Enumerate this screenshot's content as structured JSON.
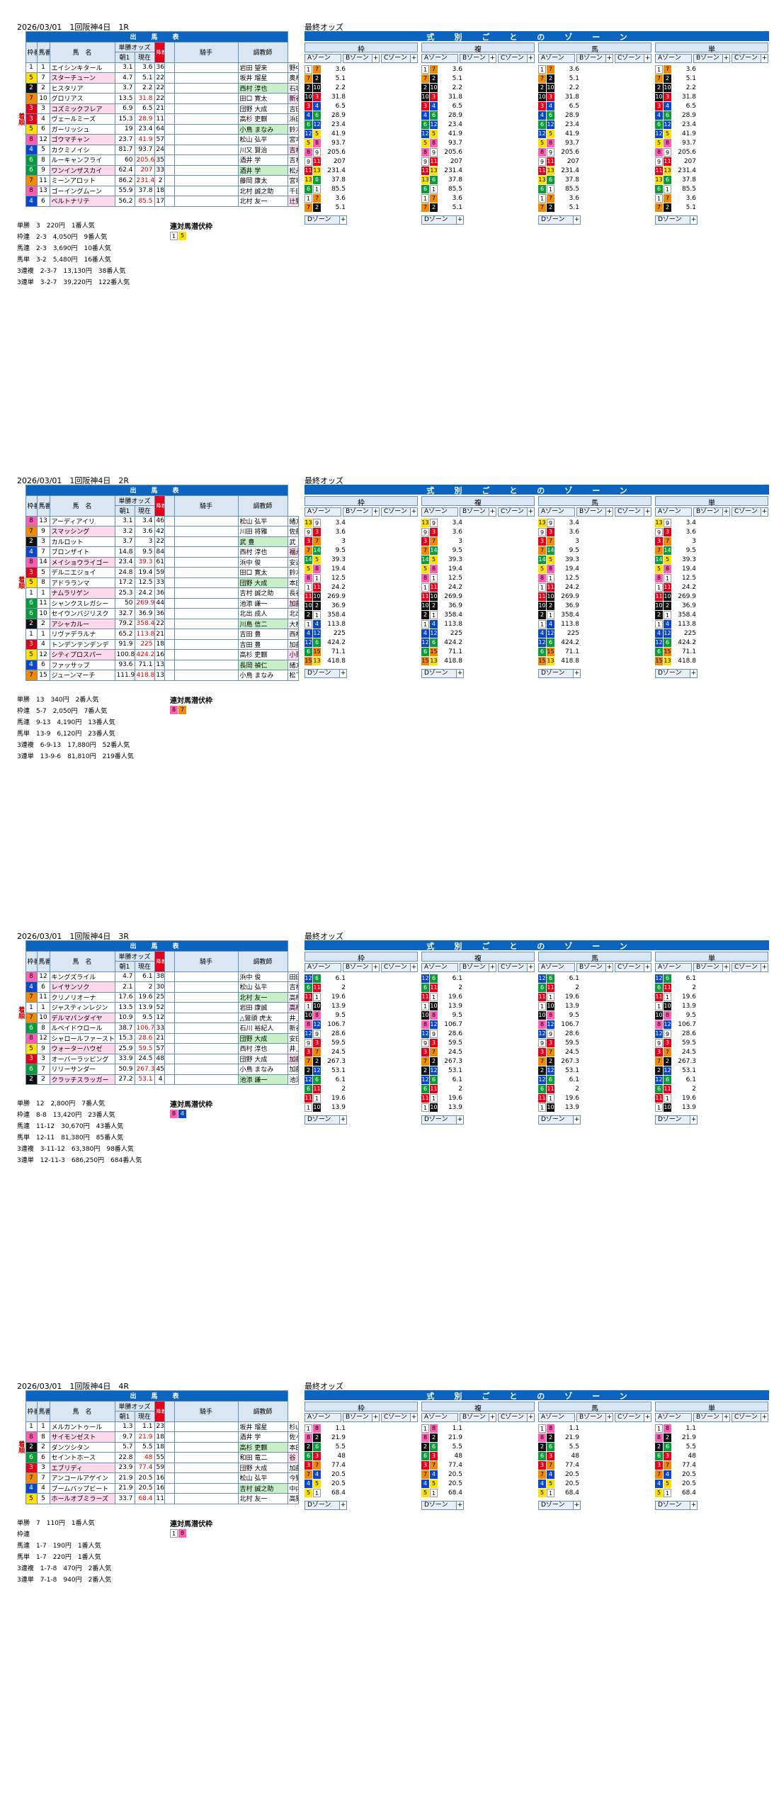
{
  "race_common": {
    "title_runners": "出　馬　表",
    "title_odds": "最終オッズ",
    "zone_header": "式別ごとのゾーン",
    "col_waku": "枠",
    "col_fuku": "複",
    "col_uma": "馬",
    "col_tan": "単",
    "th_wakuban": "枠番",
    "th_umaban": "馬番",
    "th_name": "馬　名",
    "th_odds": "単勝オッズ",
    "th_asa": "朝1",
    "th_now": "現在",
    "th_flag": "降着",
    "th_jockey": "騎手",
    "th_trainer": "調教師",
    "side_label": "着順",
    "zone_a": "Aゾーン",
    "zone_b": "Bゾーン",
    "zone_c": "Cゾーン",
    "zone_d": "Dゾーン",
    "nice": "連対馬潜伏枠"
  },
  "races": [
    {
      "header": "2026/03/01　1回阪神4日　1R",
      "runners": [
        {
          "w": "1",
          "u": "1",
          "name": "エイシンキタール",
          "a": "3.1",
          "n": "3.6",
          "p": "36",
          "j": "岩田 望来",
          "t": "野中 賢二"
        },
        {
          "w": "5",
          "u": "7",
          "name": "スターチューン",
          "a": "4.7",
          "n": "5.1",
          "p": "22",
          "j": "坂井 瑠星",
          "t": "奥村 豊"
        },
        {
          "w": "2",
          "u": "2",
          "name": "ヒスタリア",
          "a": "3.7",
          "n": "2.2",
          "p": "22",
          "j": "西村 淳也",
          "t": "石坂 公一"
        },
        {
          "w": "7",
          "u": "10",
          "name": "グロリアス",
          "a": "13.5",
          "n": "31.8",
          "p": "22",
          "j": "田口 寛太",
          "t": "新谷 功一"
        },
        {
          "w": "3",
          "u": "3",
          "name": "コズミックフレア",
          "a": "6.9",
          "n": "6.5",
          "p": "21",
          "j": "団野 大成",
          "t": "吉田 直弘"
        },
        {
          "w": "3",
          "u": "4",
          "name": "ヴェールミーズ",
          "a": "15.3",
          "n": "28.9",
          "p": "11",
          "j": "高杉 吏麒",
          "t": "浜田 多実雄"
        },
        {
          "w": "5",
          "u": "6",
          "name": "ガーリッシュ",
          "a": "19",
          "n": "23.4",
          "p": "64",
          "j": "小鳥 まなみ",
          "t": "鈴木 孝志"
        },
        {
          "w": "8",
          "u": "12",
          "name": "ゴウマチャン",
          "a": "23.7",
          "n": "41.9",
          "p": "57",
          "j": "松山 弘平",
          "t": "宮本 博"
        },
        {
          "w": "4",
          "u": "5",
          "name": "カクミノイシ",
          "a": "81.7",
          "n": "93.7",
          "p": "24",
          "j": "川又 賢治",
          "t": "吉村 圭司"
        },
        {
          "w": "6",
          "u": "8",
          "name": "ルーキャンフライ",
          "a": "60",
          "n": "205.6",
          "p": "35",
          "j": "酒井 学",
          "t": "吉村 圭司"
        },
        {
          "w": "6",
          "u": "9",
          "name": "ワンインザスカイ",
          "a": "62.4",
          "n": "207",
          "p": "33",
          "j": "酒井 学",
          "t": "松永 幹夫"
        },
        {
          "w": "7",
          "u": "11",
          "name": "ミーンアロット",
          "a": "86.2",
          "n": "231.4",
          "p": "2",
          "j": "藤岡 康太",
          "t": "宮地 貴稔"
        },
        {
          "w": "8",
          "u": "13",
          "name": "ゴーイングムーン",
          "a": "55.9",
          "n": "37.8",
          "p": "18",
          "j": "北村 誠之助",
          "t": "千田 輝彦"
        },
        {
          "w": "4",
          "u": "6",
          "name": "ベルトナリテ",
          "a": "56.2",
          "n": "85.5",
          "p": "17",
          "j": "北村 友一",
          "t": "辻野 泰之"
        }
      ],
      "payouts": [
        "単勝　3　220円　1番人気",
        "枠連　2-3　4,050円　9番人気",
        "馬連　2-3　3,690円　10番人気",
        "馬単　3-2　5,480円　16番人気",
        "3連複　2-3-7　13,130円　38番人気",
        "3連単　3-2-7　39,220円　122番人気"
      ]
    },
    {
      "header": "2026/03/01　1回阪神4日　2R",
      "runners": [
        {
          "w": "8",
          "u": "13",
          "name": "アーディアイリ",
          "a": "3.1",
          "n": "3.4",
          "p": "46",
          "j": "松山 弘平",
          "t": "緒方 努"
        },
        {
          "w": "7",
          "u": "9",
          "name": "スマッシング",
          "a": "3.2",
          "n": "3.6",
          "p": "42",
          "j": "川田 将雅",
          "t": "佐藤 悠太"
        },
        {
          "w": "2",
          "u": "3",
          "name": "カルロット",
          "a": "3.7",
          "n": "3",
          "p": "22",
          "j": "武 豊",
          "t": "武 幸四郎"
        },
        {
          "w": "4",
          "u": "7",
          "name": "ブロンザイト",
          "a": "14.8",
          "n": "9.5",
          "p": "84",
          "j": "西村 淳也",
          "t": "福永 祐一"
        },
        {
          "w": "8",
          "u": "14",
          "name": "メイショウライゴー",
          "a": "23.4",
          "n": "39.3",
          "p": "61",
          "j": "浜中 俊",
          "t": "安達 昭夫"
        },
        {
          "w": "3",
          "u": "5",
          "name": "デルニエジョイ",
          "a": "24.8",
          "n": "19.4",
          "p": "59",
          "j": "田口 寛太",
          "t": "鈴木 孝志"
        },
        {
          "w": "5",
          "u": "8",
          "name": "アドラランマ",
          "a": "17.2",
          "n": "12.5",
          "p": "33",
          "j": "団野 大成",
          "t": "本田 優"
        },
        {
          "w": "1",
          "u": "1",
          "name": "ナムラリゲン",
          "a": "25.3",
          "n": "24.2",
          "p": "36",
          "j": "吉村 誠之助",
          "t": "長谷川 浩大"
        },
        {
          "w": "6",
          "u": "11",
          "name": "シャンクスレガシー",
          "a": "50",
          "n": "269.9",
          "p": "44",
          "j": "池添 謙一",
          "t": "加藤 公太"
        },
        {
          "w": "6",
          "u": "10",
          "name": "セイウンバジリスク",
          "a": "32.7",
          "n": "36.9",
          "p": "36",
          "j": "北出 成人",
          "t": "北出 成人"
        },
        {
          "w": "2",
          "u": "2",
          "name": "アシャカルー",
          "a": "79.2",
          "n": "358.4",
          "p": "22",
          "j": "川島 信二",
          "t": "大根田 裕之"
        },
        {
          "w": "1",
          "u": "1",
          "name": "リヴァデラルナ",
          "a": "65.2",
          "n": "113.8",
          "p": "21",
          "j": "吉田 豊",
          "t": "西村 真幸"
        },
        {
          "w": "3",
          "u": "4",
          "name": "トンデンテンデンデ",
          "a": "91.9",
          "n": "225",
          "p": "18",
          "j": "吉田 豊",
          "t": "加藤 公太"
        },
        {
          "w": "5",
          "u": "12",
          "name": "シティプロスパー",
          "a": "100.8",
          "n": "424.2",
          "p": "16",
          "j": "高杉 吏麒",
          "t": "小栗 実"
        },
        {
          "w": "4",
          "u": "6",
          "name": "ファッサップ",
          "a": "93.6",
          "n": "71.1",
          "p": "13",
          "j": "長岡 禎仁",
          "t": "緒方 努"
        },
        {
          "w": "7",
          "u": "15",
          "name": "ジューンマーチ",
          "a": "111.9",
          "n": "418.8",
          "p": "13",
          "j": "小鳥 まなみ",
          "t": "松下 武士"
        }
      ],
      "payouts": [
        "単勝　13　340円　2番人気",
        "枠連　5-7　2,050円　7番人気",
        "馬連　9-13　4,190円　13番人気",
        "馬単　13-9　6,120円　23番人気",
        "3連複　6-9-13　17,880円　52番人気",
        "3連単　13-9-6　81,810円　219番人気"
      ]
    },
    {
      "header": "2026/03/01　1回阪神4日　3R",
      "runners": [
        {
          "w": "8",
          "u": "12",
          "name": "キングズライル",
          "a": "4.7",
          "n": "6.1",
          "p": "38",
          "j": "浜中 俊",
          "t": "田田 稔秀"
        },
        {
          "w": "4",
          "u": "6",
          "name": "レイサンソク",
          "a": "2.1",
          "n": "2",
          "p": "30",
          "j": "松山 弘平",
          "t": "吉村 圭司"
        },
        {
          "w": "7",
          "u": "11",
          "name": "クリノリオーナ",
          "a": "17.6",
          "n": "19.6",
          "p": "25",
          "j": "北村 友一",
          "t": "高橋 亮司"
        },
        {
          "w": "1",
          "u": "1",
          "name": "ジャスティンレジン",
          "a": "13.5",
          "n": "13.9",
          "p": "52",
          "j": "岩田 康誠",
          "t": "高橋 亮"
        },
        {
          "w": "7",
          "u": "10",
          "name": "デルマパンダイヤ",
          "a": "10.9",
          "n": "9.5",
          "p": "12",
          "j": "△鷲頭 虎太",
          "t": "井上 智史"
        },
        {
          "w": "6",
          "u": "8",
          "name": "ルペイドウロール",
          "a": "38.7",
          "n": "106.7",
          "p": "33",
          "j": "石川 裕紀人",
          "t": "新谷 功一"
        },
        {
          "w": "8",
          "u": "12",
          "name": "シャロールファースト",
          "a": "15.3",
          "n": "28.6",
          "p": "21",
          "j": "団野 大成",
          "t": "安田 翔伍"
        },
        {
          "w": "5",
          "u": "9",
          "name": "ウォーターハウゼ",
          "a": "25.9",
          "n": "59.5",
          "p": "57",
          "j": "西村 淳也",
          "t": "井上 智史"
        },
        {
          "w": "3",
          "u": "3",
          "name": "オーバーラッピング",
          "a": "33.9",
          "n": "24.5",
          "p": "48",
          "j": "団野 大成",
          "t": "加藤 公太"
        },
        {
          "w": "6",
          "u": "7",
          "name": "リリーサンダー",
          "a": "50.9",
          "n": "267.3",
          "p": "45",
          "j": "小鳥 まなみ",
          "t": "加藤 公太"
        },
        {
          "w": "2",
          "u": "2",
          "name": "クラッチスラッガー",
          "a": "27.2",
          "n": "53.1",
          "p": "4",
          "j": "池添 謙一",
          "t": "池添 学"
        }
      ],
      "payouts": [
        "単勝　12　2,800円　7番人気",
        "枠連　8-8　13,420円　23番人気",
        "馬連　11-12　30,670円　43番人気",
        "馬単　12-11　81,380円　85番人気",
        "3連複　3-11-12　63,380円　98番人気",
        "3連単　12-11-3　686,250円　684番人気"
      ]
    },
    {
      "header": "2026/03/01　1回阪神4日　4R",
      "runners": [
        {
          "w": "1",
          "u": "1",
          "name": "メルカントゥール",
          "a": "1.3",
          "n": "1.1",
          "p": "23",
          "j": "坂井 瑠星",
          "t": "杉山 晴紀"
        },
        {
          "w": "8",
          "u": "8",
          "name": "サイモンゼスト",
          "a": "9.7",
          "n": "21.9",
          "p": "18",
          "j": "酒井 学",
          "t": "佐々木 晶三"
        },
        {
          "w": "2",
          "u": "2",
          "name": "ダンツシタン",
          "a": "5.7",
          "n": "5.5",
          "p": "18",
          "j": "高杉 吏麒",
          "t": "本田 優"
        },
        {
          "w": "6",
          "u": "6",
          "name": "セイントホース",
          "a": "22.8",
          "n": "48",
          "p": "55",
          "j": "和田 竜二",
          "t": "谷 潔"
        },
        {
          "w": "3",
          "u": "3",
          "name": "エブリディ",
          "a": "23.9",
          "n": "77.4",
          "p": "59",
          "j": "団野 大成",
          "t": "加藤 公太"
        },
        {
          "w": "7",
          "u": "7",
          "name": "アンコールアゲイン",
          "a": "21.9",
          "n": "20.5",
          "p": "16",
          "j": "松山 弘平",
          "t": "今野 貞一"
        },
        {
          "w": "4",
          "u": "4",
          "name": "ブームバップビート",
          "a": "21.9",
          "n": "20.5",
          "p": "16",
          "j": "吉村 誠之助",
          "t": "中内田 充正"
        },
        {
          "w": "5",
          "u": "5",
          "name": "ホールオブミラーズ",
          "a": "33.7",
          "n": "68.4",
          "p": "11",
          "j": "北村 友一",
          "t": "高野 友和"
        }
      ],
      "payouts": [
        "単勝　7　110円　1番人気",
        "枠連",
        "馬連　1-7　190円　1番人気",
        "馬単　1-7　220円　1番人気",
        "3連複　1-7-8　470円　2番人気",
        "3連単　7-1-8　940円　2番人気"
      ]
    }
  ]
}
